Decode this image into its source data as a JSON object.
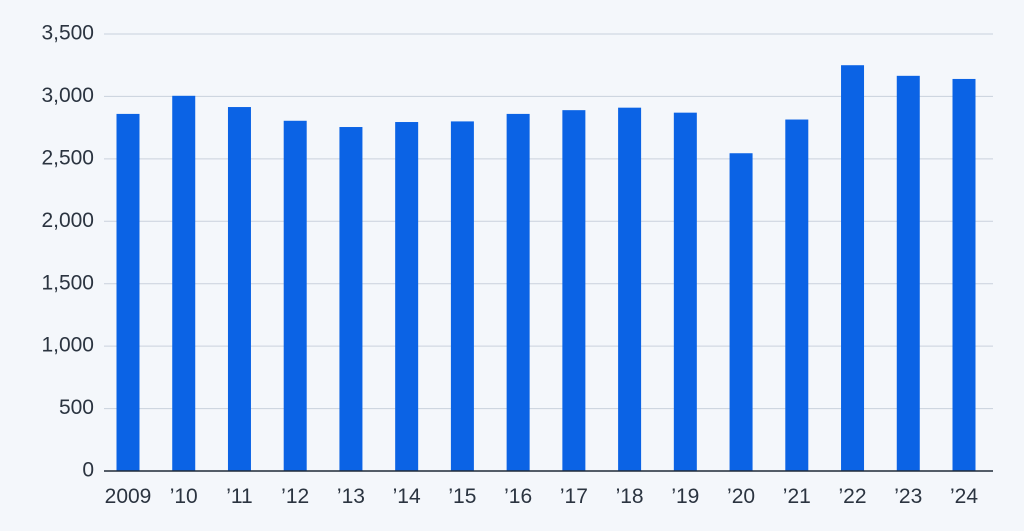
{
  "chart_data": {
    "type": "bar",
    "categories": [
      "2009",
      "’10",
      "’11",
      "’12",
      "’13",
      "’14",
      "’15",
      "’16",
      "’17",
      "’18",
      "’19",
      "’20",
      "’21",
      "’22",
      "’23",
      "’24"
    ],
    "values": [
      2860,
      3005,
      2915,
      2805,
      2755,
      2795,
      2800,
      2860,
      2890,
      2910,
      2870,
      2545,
      2815,
      3250,
      3165,
      3140
    ],
    "ylim": [
      0,
      3500
    ],
    "yticks": [
      0,
      500,
      1000,
      1500,
      2000,
      2500,
      3000,
      3500
    ],
    "ytick_labels": [
      "0",
      "500",
      "1,000",
      "1,500",
      "2,000",
      "2,500",
      "3,000",
      "3,500"
    ],
    "bar_color": "#0b63e5",
    "grid": true,
    "title": "",
    "xlabel": "",
    "ylabel": ""
  }
}
